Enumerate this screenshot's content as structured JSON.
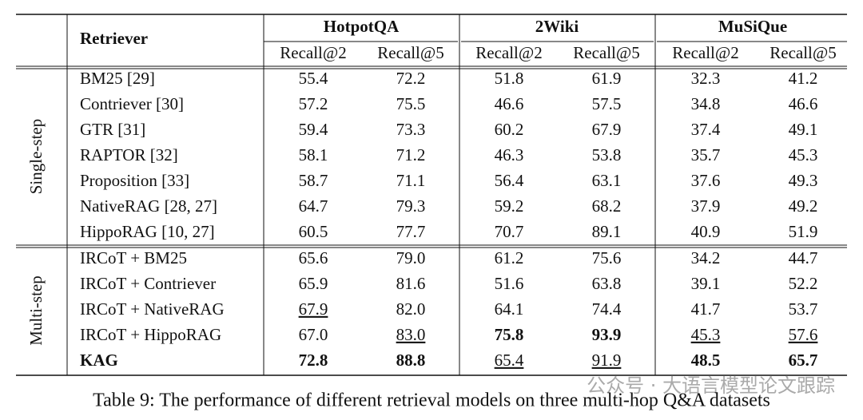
{
  "table": {
    "header": {
      "retriever": "Retriever",
      "datasets": [
        "HotpotQA",
        "2Wiki",
        "MuSiQue"
      ],
      "metrics": [
        "Recall@2",
        "Recall@5",
        "Recall@2",
        "Recall@5",
        "Recall@2",
        "Recall@5"
      ]
    },
    "groups": [
      {
        "label": "Single-step",
        "rows": [
          [
            "BM25 [29]",
            "55.4",
            "72.2",
            "51.8",
            "61.9",
            "32.3",
            "41.2"
          ],
          [
            "Contriever [30]",
            "57.2",
            "75.5",
            "46.6",
            "57.5",
            "34.8",
            "46.6"
          ],
          [
            "GTR [31]",
            "59.4",
            "73.3",
            "60.2",
            "67.9",
            "37.4",
            "49.1"
          ],
          [
            "RAPTOR [32]",
            "58.1",
            "71.2",
            "46.3",
            "53.8",
            "35.7",
            "45.3"
          ],
          [
            "Proposition [33]",
            "58.7",
            "71.1",
            "56.4",
            "63.1",
            "37.6",
            "49.3"
          ],
          [
            "NativeRAG [28, 27]",
            "64.7",
            "79.3",
            "59.2",
            "68.2",
            "37.9",
            "49.2"
          ],
          [
            "HippoRAG [10, 27]",
            "60.5",
            "77.7",
            "70.7",
            "89.1",
            "40.9",
            "51.9"
          ]
        ]
      },
      {
        "label": "Multi-step",
        "rows": [
          [
            "IRCoT + BM25",
            "65.6",
            "79.0",
            "61.2",
            "75.6",
            "34.2",
            "44.7"
          ],
          [
            "IRCoT + Contriever",
            "65.9",
            "81.6",
            "51.6",
            "63.8",
            "39.1",
            "52.2"
          ],
          [
            "IRCoT + NativeRAG",
            "67.9",
            "82.0",
            "64.1",
            "74.4",
            "41.7",
            "53.7"
          ],
          [
            "IRCoT + HippoRAG",
            "67.0",
            "83.0",
            "75.8",
            "93.9",
            "45.3",
            "57.6"
          ],
          [
            "KAG",
            "72.8",
            "88.8",
            "65.4",
            "91.9",
            "48.5",
            "65.7"
          ]
        ]
      }
    ]
  },
  "caption": "Table 9: The performance of different retrieval models on three multi-hop Q&A datasets",
  "watermark": "公众号 · 大语言模型论文跟踪"
}
